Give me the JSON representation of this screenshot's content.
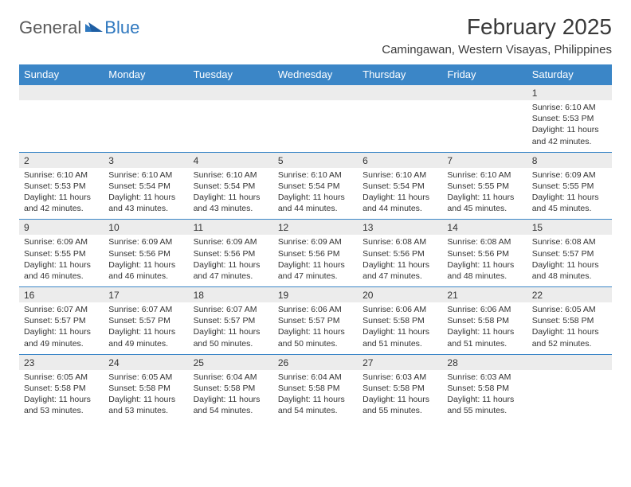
{
  "logo": {
    "general": "General",
    "blue": "Blue"
  },
  "title": "February 2025",
  "location": "Camingawan, Western Visayas, Philippines",
  "colors": {
    "header_bg": "#3b86c7",
    "header_text": "#ffffff",
    "daynum_bg": "#ececec",
    "page_bg": "#ffffff",
    "text": "#333333",
    "logo_gray": "#5a5a5a",
    "logo_blue": "#2f78bf"
  },
  "dow": [
    "Sunday",
    "Monday",
    "Tuesday",
    "Wednesday",
    "Thursday",
    "Friday",
    "Saturday"
  ],
  "weeks": [
    {
      "nums": [
        "",
        "",
        "",
        "",
        "",
        "",
        "1"
      ],
      "cells": [
        "",
        "",
        "",
        "",
        "",
        "",
        "Sunrise: 6:10 AM\nSunset: 5:53 PM\nDaylight: 11 hours and 42 minutes."
      ]
    },
    {
      "nums": [
        "2",
        "3",
        "4",
        "5",
        "6",
        "7",
        "8"
      ],
      "cells": [
        "Sunrise: 6:10 AM\nSunset: 5:53 PM\nDaylight: 11 hours and 42 minutes.",
        "Sunrise: 6:10 AM\nSunset: 5:54 PM\nDaylight: 11 hours and 43 minutes.",
        "Sunrise: 6:10 AM\nSunset: 5:54 PM\nDaylight: 11 hours and 43 minutes.",
        "Sunrise: 6:10 AM\nSunset: 5:54 PM\nDaylight: 11 hours and 44 minutes.",
        "Sunrise: 6:10 AM\nSunset: 5:54 PM\nDaylight: 11 hours and 44 minutes.",
        "Sunrise: 6:10 AM\nSunset: 5:55 PM\nDaylight: 11 hours and 45 minutes.",
        "Sunrise: 6:09 AM\nSunset: 5:55 PM\nDaylight: 11 hours and 45 minutes."
      ]
    },
    {
      "nums": [
        "9",
        "10",
        "11",
        "12",
        "13",
        "14",
        "15"
      ],
      "cells": [
        "Sunrise: 6:09 AM\nSunset: 5:55 PM\nDaylight: 11 hours and 46 minutes.",
        "Sunrise: 6:09 AM\nSunset: 5:56 PM\nDaylight: 11 hours and 46 minutes.",
        "Sunrise: 6:09 AM\nSunset: 5:56 PM\nDaylight: 11 hours and 47 minutes.",
        "Sunrise: 6:09 AM\nSunset: 5:56 PM\nDaylight: 11 hours and 47 minutes.",
        "Sunrise: 6:08 AM\nSunset: 5:56 PM\nDaylight: 11 hours and 47 minutes.",
        "Sunrise: 6:08 AM\nSunset: 5:56 PM\nDaylight: 11 hours and 48 minutes.",
        "Sunrise: 6:08 AM\nSunset: 5:57 PM\nDaylight: 11 hours and 48 minutes."
      ]
    },
    {
      "nums": [
        "16",
        "17",
        "18",
        "19",
        "20",
        "21",
        "22"
      ],
      "cells": [
        "Sunrise: 6:07 AM\nSunset: 5:57 PM\nDaylight: 11 hours and 49 minutes.",
        "Sunrise: 6:07 AM\nSunset: 5:57 PM\nDaylight: 11 hours and 49 minutes.",
        "Sunrise: 6:07 AM\nSunset: 5:57 PM\nDaylight: 11 hours and 50 minutes.",
        "Sunrise: 6:06 AM\nSunset: 5:57 PM\nDaylight: 11 hours and 50 minutes.",
        "Sunrise: 6:06 AM\nSunset: 5:58 PM\nDaylight: 11 hours and 51 minutes.",
        "Sunrise: 6:06 AM\nSunset: 5:58 PM\nDaylight: 11 hours and 51 minutes.",
        "Sunrise: 6:05 AM\nSunset: 5:58 PM\nDaylight: 11 hours and 52 minutes."
      ]
    },
    {
      "nums": [
        "23",
        "24",
        "25",
        "26",
        "27",
        "28",
        ""
      ],
      "cells": [
        "Sunrise: 6:05 AM\nSunset: 5:58 PM\nDaylight: 11 hours and 53 minutes.",
        "Sunrise: 6:05 AM\nSunset: 5:58 PM\nDaylight: 11 hours and 53 minutes.",
        "Sunrise: 6:04 AM\nSunset: 5:58 PM\nDaylight: 11 hours and 54 minutes.",
        "Sunrise: 6:04 AM\nSunset: 5:58 PM\nDaylight: 11 hours and 54 minutes.",
        "Sunrise: 6:03 AM\nSunset: 5:58 PM\nDaylight: 11 hours and 55 minutes.",
        "Sunrise: 6:03 AM\nSunset: 5:58 PM\nDaylight: 11 hours and 55 minutes.",
        ""
      ]
    }
  ]
}
